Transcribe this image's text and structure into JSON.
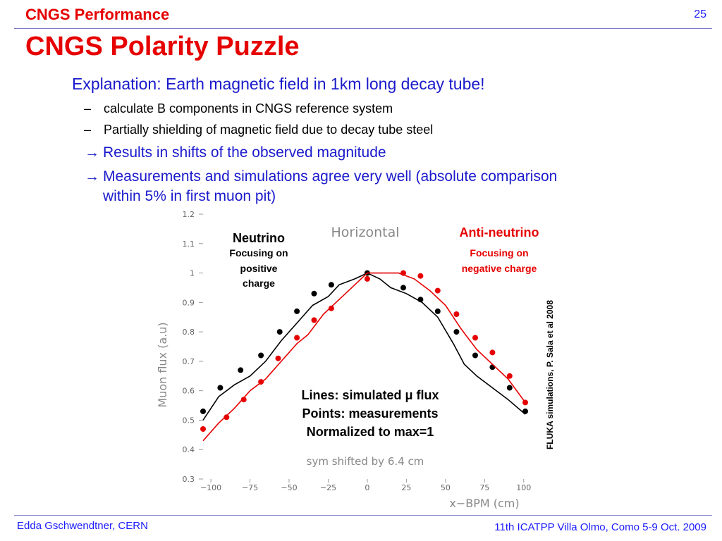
{
  "header": {
    "section_title": "CNGS Performance",
    "page_number": "25"
  },
  "slide": {
    "title": "CNGS Polarity Puzzle",
    "lead": "Explanation: Earth magnetic field in 1km long decay tube!",
    "subitems": [
      "calculate B components in CNGS reference system",
      "Partially shielding of magnetic field due to decay tube steel"
    ],
    "arrow_items": [
      "Results in shifts of the observed magnitude",
      "Measurements and simulations agree very well (absolute comparison within 5% in first muon pit)"
    ],
    "dash_glyph": "–",
    "arrow_glyph": "→"
  },
  "footer": {
    "left": "Edda Gschwendtner, CERN",
    "right": "11th ICATPP Villa Olmo, Como 5-9 Oct. 2009"
  },
  "colors": {
    "title_red": "#e60000",
    "text_blue": "#1a1acc",
    "neutrino": "#000000",
    "antineutrino": "#e60000"
  },
  "chart_data": {
    "type": "line",
    "title": "Horizontal",
    "xlabel": "x−BPM (cm)",
    "ylabel": "Muon flux (a.u)",
    "xlim": [
      -105,
      101
    ],
    "ylim": [
      0.3,
      1.2
    ],
    "xticks": [
      -100,
      -75,
      -50,
      -25,
      0,
      25,
      50,
      75,
      100
    ],
    "xtick_labels": [
      "−100",
      "−75",
      "−50",
      "−25",
      "0",
      "25",
      "50",
      "75",
      "100"
    ],
    "yticks": [
      0.3,
      0.4,
      0.5,
      0.6,
      0.7,
      0.8,
      0.9,
      1.0,
      1.1,
      1.2
    ],
    "ytick_labels": [
      "0.3",
      "0.4",
      "0.5",
      "0.6",
      "0.7",
      "0.8",
      "0.9",
      "1",
      "1.1",
      "1.2"
    ],
    "annotation_bottom": "sym shifted by 6.4 cm",
    "side_note": "FLUKA simulations, P. Sala et al 2008",
    "neutrino_label": {
      "title": "Neutrino",
      "sub": [
        "Focusing on",
        "positive",
        "charge"
      ]
    },
    "antineutrino_label": {
      "title": "Anti-neutrino",
      "sub": [
        "Focusing on",
        "negative charge"
      ]
    },
    "legend_lines": [
      "Lines: simulated μ flux",
      "Points: measurements",
      "Normalized to max=1"
    ],
    "series": [
      {
        "name": "Neutrino",
        "color": "#000000",
        "line": {
          "x": [
            -105,
            -95,
            -85,
            -75,
            -65,
            -55,
            -45,
            -35,
            -25,
            -18,
            -8,
            0,
            8,
            15,
            25,
            35,
            45,
            55,
            62,
            70,
            80,
            90,
            101
          ],
          "y": [
            0.5,
            0.58,
            0.62,
            0.65,
            0.7,
            0.77,
            0.83,
            0.89,
            0.92,
            0.96,
            0.98,
            1.0,
            0.98,
            0.95,
            0.93,
            0.9,
            0.85,
            0.76,
            0.69,
            0.65,
            0.61,
            0.57,
            0.52
          ]
        },
        "points": {
          "x": [
            -105,
            -94,
            -81,
            -68,
            -56,
            -45,
            -34,
            -23,
            0,
            23,
            34,
            45,
            57,
            69,
            80,
            91,
            101
          ],
          "y": [
            0.53,
            0.61,
            0.67,
            0.72,
            0.8,
            0.87,
            0.93,
            0.96,
            1.0,
            0.95,
            0.91,
            0.87,
            0.8,
            0.72,
            0.68,
            0.61,
            0.53
          ]
        }
      },
      {
        "name": "Anti-neutrino",
        "color": "#e60000",
        "line": {
          "x": [
            -105,
            -95,
            -85,
            -75,
            -65,
            -55,
            -45,
            -38,
            -28,
            -20,
            -10,
            0,
            10,
            20,
            30,
            40,
            50,
            60,
            70,
            80,
            90,
            101
          ],
          "y": [
            0.43,
            0.49,
            0.54,
            0.6,
            0.64,
            0.7,
            0.76,
            0.79,
            0.86,
            0.9,
            0.95,
            1.0,
            1.0,
            1.0,
            0.98,
            0.94,
            0.89,
            0.81,
            0.74,
            0.69,
            0.64,
            0.56
          ]
        },
        "points": {
          "x": [
            -105,
            -90,
            -79,
            -68,
            -57,
            -45,
            -34,
            -23,
            0,
            23,
            34,
            45,
            57,
            69,
            80,
            91,
            101
          ],
          "y": [
            0.47,
            0.51,
            0.57,
            0.63,
            0.71,
            0.78,
            0.84,
            0.88,
            0.98,
            1.0,
            0.99,
            0.94,
            0.86,
            0.78,
            0.73,
            0.65,
            0.56
          ]
        }
      }
    ]
  }
}
